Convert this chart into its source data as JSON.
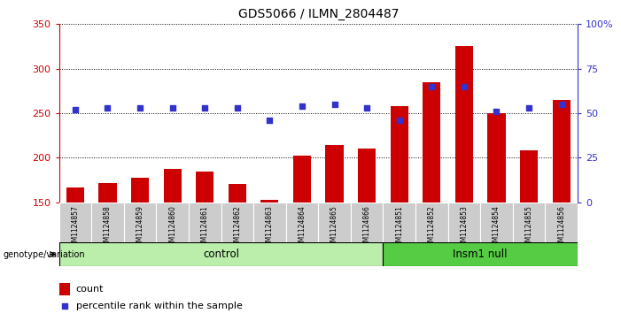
{
  "title": "GDS5066 / ILMN_2804487",
  "samples": [
    "GSM1124857",
    "GSM1124858",
    "GSM1124859",
    "GSM1124860",
    "GSM1124861",
    "GSM1124862",
    "GSM1124863",
    "GSM1124864",
    "GSM1124865",
    "GSM1124866",
    "GSM1124851",
    "GSM1124852",
    "GSM1124853",
    "GSM1124854",
    "GSM1124855",
    "GSM1124856"
  ],
  "counts": [
    167,
    172,
    177,
    187,
    184,
    171,
    153,
    202,
    214,
    210,
    258,
    285,
    325,
    250,
    208,
    265
  ],
  "percentile_ranks": [
    52,
    53,
    53,
    53,
    53,
    53,
    46,
    54,
    55,
    53,
    46,
    65,
    65,
    51,
    53,
    55
  ],
  "control_count": 10,
  "insm1_count": 6,
  "ylim_left": [
    150,
    350
  ],
  "ylim_right": [
    0,
    100
  ],
  "yticks_left": [
    150,
    200,
    250,
    300,
    350
  ],
  "yticks_right": [
    0,
    25,
    50,
    75,
    100
  ],
  "bar_color": "#cc0000",
  "dot_color": "#3333cc",
  "control_bg": "#bbeeaa",
  "insm1_bg": "#55cc44",
  "sample_bg": "#cccccc",
  "label_left_color": "#cc0000",
  "label_right_color": "#3333cc",
  "genotype_label": "genotype/variation",
  "control_label": "control",
  "insm1_label": "Insm1 null",
  "legend_count": "count",
  "legend_pct": "percentile rank within the sample"
}
